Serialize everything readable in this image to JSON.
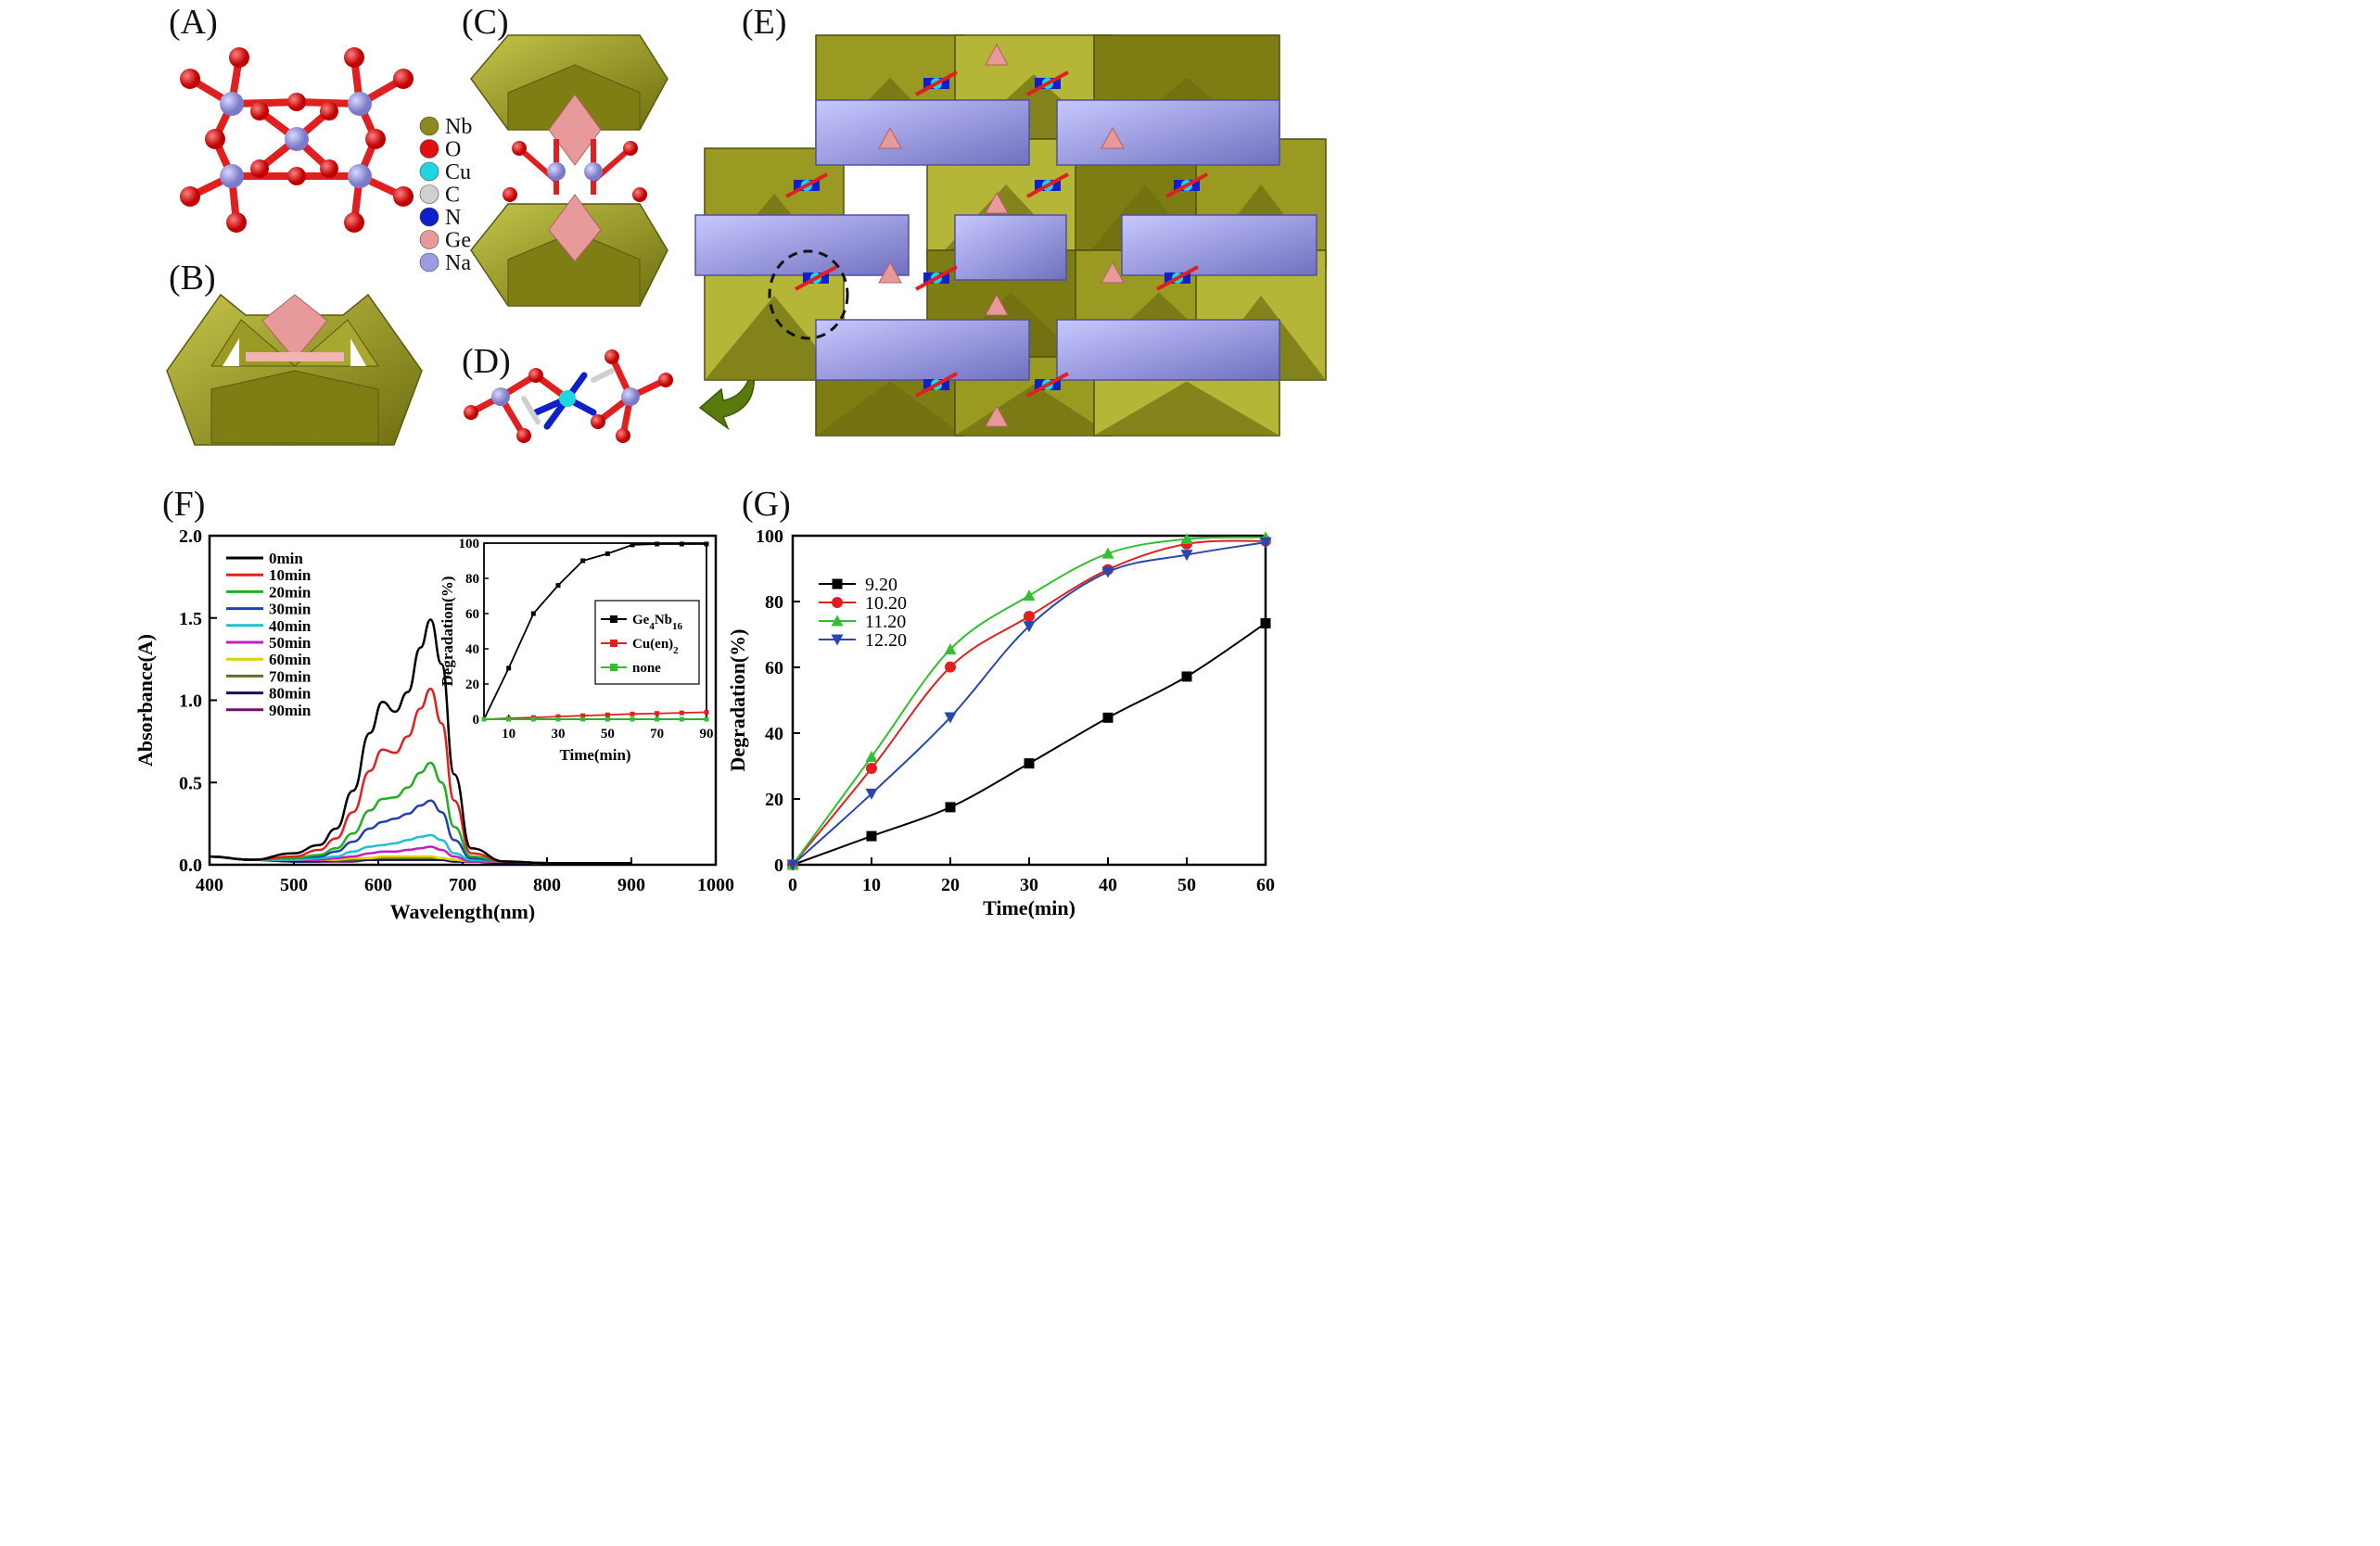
{
  "panels": {
    "A": "(A)",
    "B": "(B)",
    "C": "(C)",
    "D": "(D)",
    "E": "(E)",
    "F": "(F)",
    "G": "(G)"
  },
  "structure_legend": [
    {
      "label": "Nb",
      "color": "#8a8a1a"
    },
    {
      "label": "O",
      "color": "#e01010"
    },
    {
      "label": "Cu",
      "color": "#1ed6e0"
    },
    {
      "label": "C",
      "color": "#d0d0d0"
    },
    {
      "label": "N",
      "color": "#1020c8"
    },
    {
      "label": "Ge",
      "color": "#e89a9a"
    },
    {
      "label": "Na",
      "color": "#9c9ce0"
    }
  ],
  "chart_data": [
    {
      "id": "F-main",
      "type": "line",
      "xlabel": "Wavelength(nm)",
      "ylabel": "Absorbance(A)",
      "xlim": [
        400,
        1000
      ],
      "ylim": [
        0,
        2.0
      ],
      "xticks": [
        400,
        500,
        600,
        700,
        800,
        900,
        1000
      ],
      "yticks": [
        0.0,
        0.5,
        1.0,
        1.5,
        2.0
      ],
      "ytick_labels": [
        "0.0",
        "0.5",
        "1.0",
        "1.5",
        "2.0"
      ],
      "x": [
        400,
        450,
        500,
        530,
        550,
        570,
        590,
        605,
        620,
        635,
        650,
        662,
        675,
        690,
        710,
        750,
        800,
        900
      ],
      "series": [
        {
          "name": "0min",
          "color": "#000000",
          "values": [
            0.05,
            0.03,
            0.07,
            0.12,
            0.22,
            0.45,
            0.8,
            0.99,
            0.93,
            1.05,
            1.32,
            1.49,
            1.22,
            0.55,
            0.1,
            0.02,
            0.01,
            0.01
          ]
        },
        {
          "name": "10min",
          "color": "#e02020",
          "values": [
            0.05,
            0.03,
            0.05,
            0.09,
            0.16,
            0.32,
            0.57,
            0.7,
            0.68,
            0.78,
            0.95,
            1.07,
            0.86,
            0.39,
            0.07,
            0.02,
            0.01,
            0.01
          ]
        },
        {
          "name": "20min",
          "color": "#20b020",
          "values": [
            0.05,
            0.03,
            0.04,
            0.06,
            0.1,
            0.19,
            0.33,
            0.4,
            0.41,
            0.47,
            0.56,
            0.62,
            0.5,
            0.23,
            0.05,
            0.02,
            0.01,
            0.01
          ]
        },
        {
          "name": "30min",
          "color": "#2040b0",
          "values": [
            0.05,
            0.03,
            0.04,
            0.05,
            0.08,
            0.14,
            0.22,
            0.26,
            0.28,
            0.31,
            0.36,
            0.39,
            0.32,
            0.15,
            0.04,
            0.02,
            0.01,
            0.01
          ]
        },
        {
          "name": "40min",
          "color": "#20c0d0",
          "values": [
            0.05,
            0.03,
            0.03,
            0.04,
            0.05,
            0.08,
            0.11,
            0.12,
            0.13,
            0.15,
            0.17,
            0.18,
            0.15,
            0.07,
            0.03,
            0.02,
            0.01,
            0.01
          ]
        },
        {
          "name": "50min",
          "color": "#c020c0",
          "values": [
            0.05,
            0.03,
            0.03,
            0.03,
            0.04,
            0.05,
            0.07,
            0.08,
            0.08,
            0.09,
            0.1,
            0.11,
            0.09,
            0.05,
            0.02,
            0.02,
            0.01,
            0.01
          ]
        },
        {
          "name": "60min",
          "color": "#e0d000",
          "values": [
            0.05,
            0.03,
            0.03,
            0.03,
            0.03,
            0.04,
            0.04,
            0.05,
            0.05,
            0.05,
            0.05,
            0.05,
            0.04,
            0.03,
            0.02,
            0.02,
            0.01,
            0.01
          ]
        },
        {
          "name": "70min",
          "color": "#607020",
          "values": [
            0.05,
            0.03,
            0.03,
            0.03,
            0.03,
            0.03,
            0.04,
            0.04,
            0.04,
            0.04,
            0.04,
            0.04,
            0.04,
            0.03,
            0.02,
            0.02,
            0.01,
            0.01
          ]
        },
        {
          "name": "80min",
          "color": "#101060",
          "values": [
            0.05,
            0.03,
            0.02,
            0.02,
            0.03,
            0.03,
            0.03,
            0.03,
            0.03,
            0.03,
            0.03,
            0.03,
            0.03,
            0.02,
            0.02,
            0.01,
            0.01,
            0.01
          ]
        },
        {
          "name": "90min",
          "color": "#701070",
          "values": [
            0.05,
            0.03,
            0.02,
            0.02,
            0.02,
            0.02,
            0.03,
            0.03,
            0.03,
            0.03,
            0.03,
            0.03,
            0.03,
            0.02,
            0.02,
            0.01,
            0.01,
            0.01
          ]
        }
      ]
    },
    {
      "id": "F-inset",
      "type": "line",
      "xlabel": "Time(min)",
      "ylabel": "Degradation(%)",
      "xlim": [
        0,
        90
      ],
      "ylim": [
        0,
        100
      ],
      "xticks": [
        10,
        30,
        50,
        70,
        90
      ],
      "yticks": [
        0,
        20,
        40,
        60,
        80,
        100
      ],
      "x": [
        0,
        10,
        20,
        30,
        40,
        50,
        60,
        70,
        80,
        90
      ],
      "series": [
        {
          "name": "Ge4Nb16",
          "display": [
            "Ge",
            "4",
            "Nb",
            "16"
          ],
          "color": "#000000",
          "values": [
            0,
            29,
            60,
            76,
            90,
            94,
            99,
            99.5,
            99.5,
            99.5
          ]
        },
        {
          "name": "Cu(en)2",
          "display": [
            "Cu(en)",
            "2",
            "",
            ""
          ],
          "color": "#e02020",
          "values": [
            0,
            0.5,
            1,
            1.5,
            2,
            2.5,
            3,
            3.3,
            3.6,
            4
          ]
        },
        {
          "name": "none",
          "display": [
            "none",
            "",
            "",
            ""
          ],
          "color": "#30c030",
          "values": [
            0,
            0,
            0,
            0,
            0,
            0,
            0,
            0,
            0,
            0
          ]
        }
      ]
    },
    {
      "id": "G",
      "type": "line",
      "xlabel": "Time(min)",
      "ylabel": "Degradation(%)",
      "xlim": [
        0,
        60
      ],
      "ylim": [
        0,
        100
      ],
      "xticks": [
        0,
        10,
        20,
        30,
        40,
        50,
        60
      ],
      "yticks": [
        0,
        20,
        40,
        60,
        80,
        100
      ],
      "x": [
        0,
        10,
        20,
        30,
        40,
        50,
        60
      ],
      "series": [
        {
          "name": "9.20",
          "color": "#000000",
          "marker": "square",
          "values": [
            0,
            8.7,
            17.5,
            30.8,
            44.7,
            57.2,
            73.4
          ]
        },
        {
          "name": "10.20",
          "color": "#e02020",
          "marker": "circle",
          "values": [
            0,
            29.3,
            60.1,
            75.5,
            89.7,
            97.5,
            98.4
          ]
        },
        {
          "name": "11.20",
          "color": "#30c030",
          "marker": "triangle",
          "values": [
            0,
            32.8,
            65.5,
            81.8,
            94.6,
            99.0,
            99.5
          ]
        },
        {
          "name": "12.20",
          "color": "#2848b0",
          "marker": "tridown",
          "values": [
            0,
            21.6,
            44.8,
            72.5,
            89.0,
            94.2,
            98.0
          ]
        }
      ]
    }
  ]
}
